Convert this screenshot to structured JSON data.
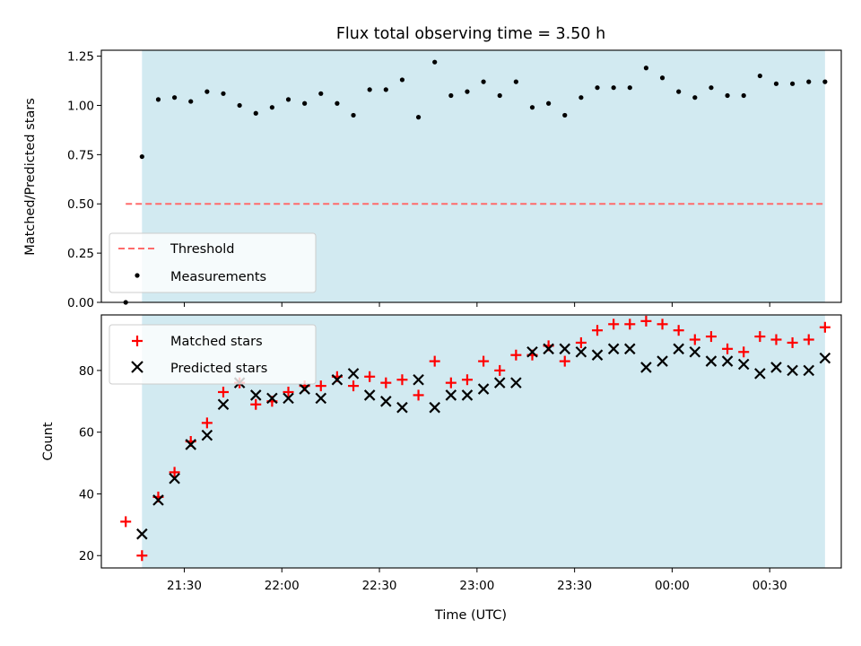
{
  "chart_data": {
    "type": "scatter",
    "title": "Flux total observing time = 3.50 h",
    "xlabel": "Time (UTC)",
    "x_tick_labels": [
      "21:30",
      "22:00",
      "22:30",
      "23:00",
      "23:30",
      "00:00",
      "00:30"
    ],
    "x_ticks": [
      "21:30",
      "22:00",
      "22:30",
      "23:00",
      "23:30",
      "00:00",
      "00:30"
    ],
    "shaded_interval": [
      "21:17",
      "00:47"
    ],
    "shaded_color": "#add8e6",
    "top_panel": {
      "ylabel": "Matched/Predicted stars",
      "ylim": [
        0,
        1.28
      ],
      "y_ticks": [
        0,
        0.25,
        0.5,
        0.75,
        1.0,
        1.25
      ],
      "y_tick_labels": [
        "0.00",
        "0.25",
        "0.50",
        "0.75",
        "1.00",
        "1.25"
      ],
      "threshold": {
        "name": "Threshold",
        "value": 0.5,
        "color": "#ff6b6b"
      },
      "measurements": {
        "name": "Measurements",
        "color": "#000000",
        "x": [
          "21:12",
          "21:17",
          "21:22",
          "21:27",
          "21:32",
          "21:37",
          "21:42",
          "21:47",
          "21:52",
          "21:57",
          "22:02",
          "22:07",
          "22:12",
          "22:17",
          "22:22",
          "22:27",
          "22:32",
          "22:37",
          "22:42",
          "22:47",
          "22:52",
          "22:57",
          "23:02",
          "23:07",
          "23:12",
          "23:17",
          "23:22",
          "23:27",
          "23:32",
          "23:37",
          "23:42",
          "23:47",
          "23:52",
          "23:57",
          "00:02",
          "00:07",
          "00:12",
          "00:17",
          "00:22",
          "00:27",
          "00:32",
          "00:37",
          "00:42",
          "00:47"
        ],
        "y": [
          0.0,
          0.74,
          1.03,
          1.04,
          1.02,
          1.07,
          1.06,
          1.0,
          0.96,
          0.99,
          1.03,
          1.01,
          1.06,
          1.01,
          0.95,
          1.08,
          1.08,
          1.13,
          0.94,
          1.22,
          1.05,
          1.07,
          1.12,
          1.05,
          1.12,
          0.99,
          1.01,
          0.95,
          1.04,
          1.09,
          1.09,
          1.09,
          1.19,
          1.14,
          1.07,
          1.04,
          1.09,
          1.05,
          1.05,
          1.15,
          1.11,
          1.11,
          1.12,
          1.12
        ]
      }
    },
    "bottom_panel": {
      "ylabel": "Count",
      "ylim": [
        16,
        98
      ],
      "y_ticks": [
        20,
        40,
        60,
        80
      ],
      "y_tick_labels": [
        "20",
        "40",
        "60",
        "80"
      ],
      "series": [
        {
          "name": "Matched stars",
          "marker": "+",
          "color": "#ff0000",
          "x": [
            "21:12",
            "21:17",
            "21:22",
            "21:27",
            "21:32",
            "21:37",
            "21:42",
            "21:47",
            "21:52",
            "21:57",
            "22:02",
            "22:07",
            "22:12",
            "22:17",
            "22:22",
            "22:27",
            "22:32",
            "22:37",
            "22:42",
            "22:47",
            "22:52",
            "22:57",
            "23:02",
            "23:07",
            "23:12",
            "23:17",
            "23:22",
            "23:27",
            "23:32",
            "23:37",
            "23:42",
            "23:47",
            "23:52",
            "23:57",
            "00:02",
            "00:07",
            "00:12",
            "00:17",
            "00:22",
            "00:27",
            "00:32",
            "00:37",
            "00:42",
            "00:47"
          ],
          "y": [
            31,
            20,
            39,
            47,
            57,
            63,
            73,
            76,
            69,
            70,
            73,
            75,
            75,
            78,
            75,
            78,
            76,
            77,
            72,
            83,
            76,
            77,
            83,
            80,
            85,
            85,
            88,
            83,
            89,
            93,
            95,
            95,
            96,
            95,
            93,
            90,
            91,
            87,
            86,
            91,
            90,
            89,
            90,
            94
          ]
        },
        {
          "name": "Predicted stars",
          "marker": "x",
          "color": "#000000",
          "x": [
            "21:17",
            "21:22",
            "21:27",
            "21:32",
            "21:37",
            "21:42",
            "21:47",
            "21:52",
            "21:57",
            "22:02",
            "22:07",
            "22:12",
            "22:17",
            "22:22",
            "22:27",
            "22:32",
            "22:37",
            "22:42",
            "22:47",
            "22:52",
            "22:57",
            "23:02",
            "23:07",
            "23:12",
            "23:17",
            "23:22",
            "23:27",
            "23:32",
            "23:37",
            "23:42",
            "23:47",
            "23:52",
            "23:57",
            "00:02",
            "00:07",
            "00:12",
            "00:17",
            "00:22",
            "00:27",
            "00:32",
            "00:37",
            "00:42",
            "00:47"
          ],
          "y": [
            27,
            38,
            45,
            56,
            59,
            69,
            76,
            72,
            71,
            71,
            74,
            71,
            77,
            79,
            72,
            70,
            68,
            77,
            68,
            72,
            72,
            74,
            76,
            76,
            86,
            87,
            87,
            86,
            85,
            87,
            87,
            81,
            83,
            87,
            86,
            83,
            83,
            82,
            79,
            81,
            80,
            80,
            84
          ]
        }
      ]
    }
  }
}
